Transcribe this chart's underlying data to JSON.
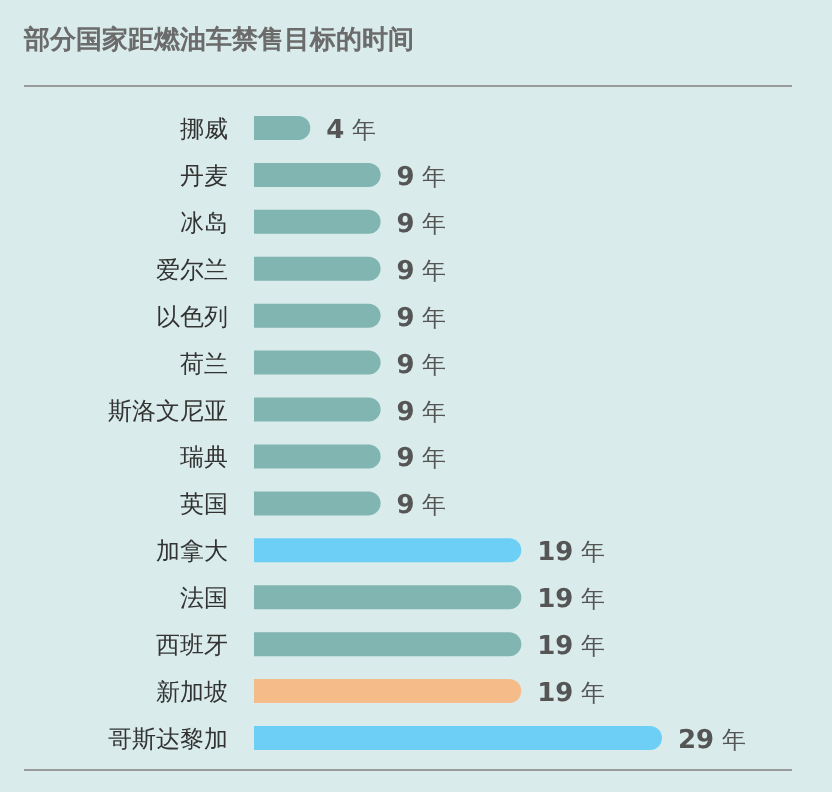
{
  "chart_data": {
    "type": "bar",
    "orientation": "horizontal",
    "title": "部分国家距燃油车禁售目标的时间",
    "categories": [
      "挪威",
      "丹麦",
      "冰岛",
      "爱尔兰",
      "以色列",
      "荷兰",
      "斯洛文尼亚",
      "瑞典",
      "英国",
      "加拿大",
      "法国",
      "西班牙",
      "新加坡",
      "哥斯达黎加"
    ],
    "values": [
      4,
      9,
      9,
      9,
      9,
      9,
      9,
      9,
      9,
      19,
      19,
      19,
      19,
      29
    ],
    "colors": [
      "#80b5b1",
      "#80b5b1",
      "#80b5b1",
      "#80b5b1",
      "#80b5b1",
      "#80b5b1",
      "#80b5b1",
      "#80b5b1",
      "#80b5b1",
      "#6dcff6",
      "#80b5b1",
      "#80b5b1",
      "#f5bc8a",
      "#6dcff6"
    ],
    "value_labels": [
      "4 年",
      "9 年",
      "9 年",
      "9 年",
      "9 年",
      "9 年",
      "9 年",
      "9 年",
      "9 年",
      "19 年",
      "19 年",
      "19 年",
      "19 年",
      "29 年"
    ]
  }
}
